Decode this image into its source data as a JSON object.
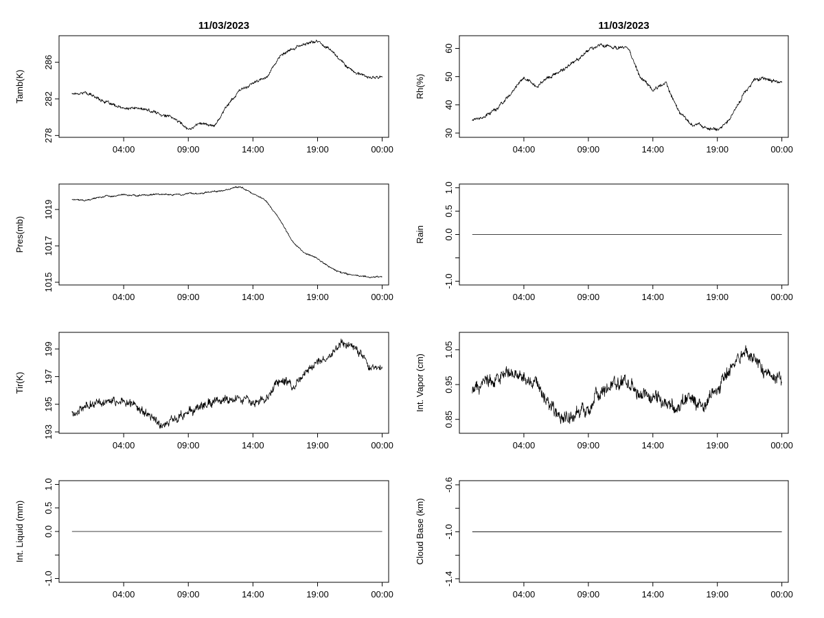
{
  "colors": {
    "background": "#ffffff",
    "line": "#000000"
  },
  "chart_data": [
    {
      "type": "line",
      "title": "11/03/2023",
      "ylabel": "Tamb(K)",
      "xlim": [
        -1,
        24.5
      ],
      "ylim": [
        277.8,
        288.9
      ],
      "xticks": [
        4,
        9,
        14,
        19,
        24
      ],
      "xtick_labels": [
        "04:00",
        "09:00",
        "14:00",
        "19:00",
        "00:00"
      ],
      "yticks": [
        278,
        282,
        286
      ],
      "ytick_labels": [
        "278",
        "282",
        "286"
      ],
      "x": [
        0,
        1,
        2,
        3,
        4,
        5,
        6,
        7,
        8,
        9,
        10,
        11,
        12,
        13,
        14,
        15,
        16,
        17,
        18,
        19,
        20,
        21,
        22,
        23,
        24
      ],
      "y": [
        282.6,
        282.7,
        282.1,
        281.4,
        280.9,
        281.0,
        280.7,
        280.3,
        279.8,
        278.7,
        279.4,
        279.0,
        281.3,
        282.9,
        283.7,
        284.3,
        286.5,
        287.4,
        288.0,
        288.3,
        287.4,
        285.9,
        284.8,
        284.3,
        284.4
      ],
      "noise": 0.15
    },
    {
      "type": "line",
      "title": "11/03/2023",
      "ylabel": "Rh(%)",
      "xlim": [
        -1,
        24.5
      ],
      "ylim": [
        28.5,
        64.5
      ],
      "xticks": [
        4,
        9,
        14,
        19,
        24
      ],
      "xtick_labels": [
        "04:00",
        "09:00",
        "14:00",
        "19:00",
        "00:00"
      ],
      "yticks": [
        30,
        40,
        50,
        60
      ],
      "ytick_labels": [
        "30",
        "40",
        "50",
        "60"
      ],
      "x": [
        0,
        1,
        2,
        3,
        4,
        5,
        6,
        7,
        8,
        9,
        10,
        11,
        12,
        13,
        14,
        15,
        16,
        17,
        18,
        19,
        20,
        21,
        22,
        23,
        24
      ],
      "y": [
        34.8,
        36.0,
        39.0,
        44.0,
        49.5,
        47.0,
        50.0,
        52.0,
        55.5,
        59.5,
        61.5,
        60.5,
        60.5,
        50.0,
        45.5,
        47.5,
        38.0,
        33.0,
        32.5,
        31.0,
        35.0,
        43.5,
        49.5,
        49.0,
        47.5
      ],
      "noise": 0.6
    },
    {
      "type": "line",
      "title": "",
      "ylabel": "Pres(mb)",
      "xlim": [
        -1,
        24.5
      ],
      "ylim": [
        1014.85,
        1020.4
      ],
      "xticks": [
        4,
        9,
        14,
        19,
        24
      ],
      "xtick_labels": [
        "04:00",
        "09:00",
        "14:00",
        "19:00",
        "00:00"
      ],
      "yticks": [
        1015,
        1017,
        1019
      ],
      "ytick_labels": [
        "1015",
        "1017",
        "1019"
      ],
      "x": [
        0,
        1,
        2,
        3,
        4,
        5,
        6,
        7,
        8,
        9,
        10,
        11,
        12,
        13,
        14,
        15,
        16,
        17,
        18,
        19,
        20,
        21,
        22,
        23,
        24
      ],
      "y": [
        1019.55,
        1019.5,
        1019.65,
        1019.75,
        1019.8,
        1019.75,
        1019.8,
        1019.85,
        1019.8,
        1019.85,
        1019.9,
        1020.0,
        1020.1,
        1020.25,
        1019.9,
        1019.5,
        1018.5,
        1017.3,
        1016.6,
        1016.3,
        1015.8,
        1015.5,
        1015.35,
        1015.3,
        1015.3
      ],
      "noise": 0.04
    },
    {
      "type": "line",
      "title": "",
      "ylabel": "Rain",
      "xlim": [
        -1,
        24.5
      ],
      "ylim": [
        -1.08,
        1.08
      ],
      "xticks": [
        4,
        9,
        14,
        19,
        24
      ],
      "xtick_labels": [
        "04:00",
        "09:00",
        "14:00",
        "19:00",
        "00:00"
      ],
      "yticks": [
        -1.0,
        -0.5,
        0.0,
        0.5,
        1.0
      ],
      "ytick_labels": [
        "-1.0",
        "",
        "0.0",
        "0.5",
        "1.0"
      ],
      "x": [
        0,
        24
      ],
      "y": [
        0,
        0
      ],
      "noise": 0
    },
    {
      "type": "line",
      "title": "",
      "ylabel": "Tir(K)",
      "xlim": [
        -1,
        24.5
      ],
      "ylim": [
        192.9,
        200.2
      ],
      "xticks": [
        4,
        9,
        14,
        19,
        24
      ],
      "xtick_labels": [
        "04:00",
        "09:00",
        "14:00",
        "19:00",
        "00:00"
      ],
      "yticks": [
        193,
        195,
        197,
        199
      ],
      "ytick_labels": [
        "193",
        "195",
        "197",
        "199"
      ],
      "x": [
        0,
        1,
        2,
        3,
        4,
        5,
        6,
        7,
        8,
        9,
        10,
        11,
        12,
        13,
        14,
        15,
        16,
        17,
        18,
        19,
        20,
        21,
        22,
        23,
        24
      ],
      "y": [
        194.3,
        194.9,
        195.2,
        195.4,
        195.1,
        195.0,
        194.2,
        193.5,
        193.9,
        194.3,
        194.8,
        195.2,
        195.3,
        195.3,
        195.2,
        195.6,
        196.5,
        196.4,
        197.2,
        198.0,
        198.5,
        199.5,
        199.0,
        197.8,
        197.5
      ],
      "noise": 0.3
    },
    {
      "type": "line",
      "title": "",
      "ylabel": "Int. Vapor (cm)",
      "xlim": [
        -1,
        24.5
      ],
      "ylim": [
        0.81,
        1.1
      ],
      "xticks": [
        4,
        9,
        14,
        19,
        24
      ],
      "xtick_labels": [
        "04:00",
        "09:00",
        "14:00",
        "19:00",
        "00:00"
      ],
      "yticks": [
        0.85,
        0.95,
        1.05
      ],
      "ytick_labels": [
        "0.85",
        "0.95",
        "1.05"
      ],
      "x": [
        0,
        1,
        2,
        3,
        4,
        5,
        6,
        7,
        8,
        9,
        10,
        11,
        12,
        13,
        14,
        15,
        16,
        17,
        18,
        19,
        20,
        21,
        22,
        23,
        24
      ],
      "y": [
        0.93,
        0.96,
        0.97,
        0.98,
        0.97,
        0.96,
        0.9,
        0.85,
        0.86,
        0.89,
        0.93,
        0.95,
        0.96,
        0.93,
        0.91,
        0.9,
        0.89,
        0.9,
        0.88,
        0.94,
        0.99,
        1.04,
        1.01,
        0.98,
        0.96
      ],
      "noise": 0.018
    },
    {
      "type": "line",
      "title": "",
      "ylabel": "Int. Liquid (mm)",
      "xlim": [
        -1,
        24.5
      ],
      "ylim": [
        -1.08,
        1.08
      ],
      "xticks": [
        4,
        9,
        14,
        19,
        24
      ],
      "xtick_labels": [
        "04:00",
        "09:00",
        "14:00",
        "19:00",
        "00:00"
      ],
      "yticks": [
        -1.0,
        -0.5,
        0.0,
        0.5,
        1.0
      ],
      "ytick_labels": [
        "-1.0",
        "",
        "0.0",
        "0.5",
        "1.0"
      ],
      "x": [
        0,
        24
      ],
      "y": [
        0,
        0
      ],
      "noise": 0
    },
    {
      "type": "line",
      "title": "",
      "ylabel": "Cloud Base (km)",
      "xlim": [
        -1,
        24.5
      ],
      "ylim": [
        -1.43,
        -0.565
      ],
      "xticks": [
        4,
        9,
        14,
        19,
        24
      ],
      "xtick_labels": [
        "04:00",
        "09:00",
        "14:00",
        "19:00",
        "00:00"
      ],
      "yticks": [
        -1.4,
        -1.2,
        -1.0,
        -0.8,
        -0.6
      ],
      "ytick_labels": [
        "-1.4",
        "",
        "-1.0",
        "",
        "-0.6"
      ],
      "x": [
        0,
        24
      ],
      "y": [
        -1,
        -1
      ],
      "noise": 0
    }
  ]
}
